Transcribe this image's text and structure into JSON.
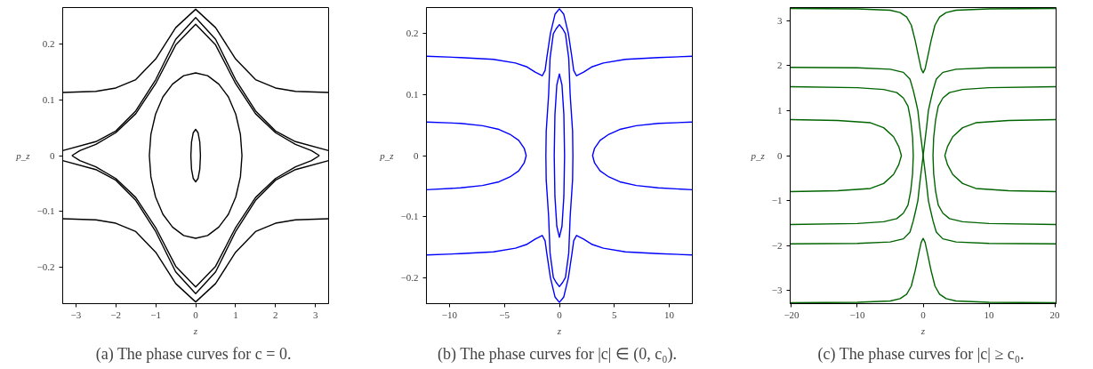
{
  "chart_data": [
    {
      "type": "line",
      "xlabel": "z",
      "ylabel": "p_z",
      "grid": false,
      "xlim": [
        -3.33,
        3.33
      ],
      "ylim": [
        -0.265,
        0.265
      ],
      "xticks": [
        {
          "value": -3,
          "label": "−3"
        },
        {
          "value": -2,
          "label": "−2"
        },
        {
          "value": -1,
          "label": "−1"
        },
        0,
        1,
        2,
        3
      ],
      "yticks": [
        {
          "value": -0.2,
          "label": "−0.2"
        },
        {
          "value": -0.1,
          "label": "−0.1"
        },
        0,
        0.1,
        0.2
      ],
      "annotations": [
        "(a)  The phase curves for c = 0."
      ],
      "series": [
        {
          "color": "#000000",
          "x": [
            -3.33,
            -2.5,
            -2,
            -1.5,
            -1,
            -0.5,
            0,
            0.5,
            1,
            1.5,
            2,
            2.5,
            3.33
          ],
          "values": [
            0.113,
            0.115,
            0.121,
            0.136,
            0.173,
            0.229,
            0.262,
            0.229,
            0.173,
            0.136,
            0.121,
            0.115,
            0.113
          ]
        },
        {
          "color": "#000000",
          "x": [
            -3.33,
            -2.5,
            -2,
            -1.5,
            -1,
            -0.5,
            0,
            0.5,
            1,
            1.5,
            2,
            2.5,
            3.33
          ],
          "values": [
            -0.113,
            -0.115,
            -0.121,
            -0.136,
            -0.173,
            -0.229,
            -0.262,
            -0.229,
            -0.173,
            -0.136,
            -0.121,
            -0.115,
            -0.113
          ]
        },
        {
          "color": "#000000",
          "x": [
            -3.33,
            -2.5,
            -2,
            -1.5,
            -1,
            -0.5,
            0,
            0.5,
            1,
            1.5,
            2,
            2.5,
            3.33
          ],
          "values": [
            0.009,
            0.025,
            0.044,
            0.08,
            0.136,
            0.208,
            0.247,
            0.208,
            0.136,
            0.08,
            0.044,
            0.025,
            0.009
          ]
        },
        {
          "color": "#000000",
          "x": [
            -3.33,
            -2.5,
            -2,
            -1.5,
            -1,
            -0.5,
            0,
            0.5,
            1,
            1.5,
            2,
            2.5,
            3.33
          ],
          "values": [
            -0.009,
            -0.025,
            -0.044,
            -0.08,
            -0.136,
            -0.208,
            -0.247,
            -0.208,
            -0.136,
            -0.08,
            -0.044,
            -0.025,
            -0.009
          ]
        },
        {
          "color": "#000000",
          "x": [
            -3.1,
            -2.9,
            -2.5,
            -2,
            -1.5,
            -1,
            -0.5,
            0,
            0.5,
            1,
            1.5,
            2,
            2.5,
            2.9,
            3.1,
            null,
            -3.1,
            -2.9,
            -2.5,
            -2,
            -1.5,
            -1,
            -0.5,
            0,
            0.5,
            1,
            1.5,
            2,
            2.5,
            2.9,
            3.1
          ],
          "values": [
            0,
            0.009,
            0.02,
            0.041,
            0.075,
            0.129,
            0.198,
            0.235,
            0.198,
            0.129,
            0.075,
            0.041,
            0.02,
            0.009,
            0,
            null,
            0,
            -0.009,
            -0.02,
            -0.041,
            -0.075,
            -0.129,
            -0.198,
            -0.235,
            -0.198,
            -0.129,
            -0.075,
            -0.041,
            -0.02,
            -0.009,
            0
          ]
        },
        {
          "color": "#000000",
          "x": [
            -1.16,
            -1.121,
            -1.005,
            -0.82,
            -0.58,
            -0.3,
            0,
            0.3,
            0.58,
            0.82,
            1.005,
            1.121,
            1.16,
            null,
            -1.16,
            -1.121,
            -1.005,
            -0.82,
            -0.58,
            -0.3,
            0,
            0.3,
            0.58,
            0.82,
            1.005,
            1.121,
            1.16
          ],
          "values": [
            0,
            0.038,
            0.074,
            0.105,
            0.128,
            0.143,
            0.148,
            0.143,
            0.128,
            0.105,
            0.074,
            0.038,
            0,
            null,
            0,
            -0.038,
            -0.074,
            -0.105,
            -0.128,
            -0.143,
            -0.148,
            -0.143,
            -0.128,
            -0.105,
            -0.074,
            -0.038,
            0
          ]
        },
        {
          "color": "#000000",
          "x": [
            -0.12,
            -0.104,
            -0.06,
            0,
            0.06,
            0.104,
            0.12,
            null,
            -0.12,
            -0.104,
            -0.06,
            0,
            0.06,
            0.104,
            0.12
          ],
          "values": [
            0,
            0.024,
            0.041,
            0.047,
            0.041,
            0.024,
            0,
            null,
            0,
            -0.024,
            -0.041,
            -0.047,
            -0.041,
            -0.024,
            0
          ]
        }
      ]
    },
    {
      "type": "line",
      "xlabel": "z",
      "ylabel": "p_z",
      "grid": false,
      "xlim": [
        -12.1,
        12.1
      ],
      "ylim": [
        -0.243,
        0.243
      ],
      "xticks": [
        {
          "value": -10,
          "label": "−10"
        },
        {
          "value": -5,
          "label": "−5"
        },
        0,
        5,
        10
      ],
      "yticks": [
        {
          "value": -0.2,
          "label": "−0.2"
        },
        {
          "value": -0.1,
          "label": "−0.1"
        },
        0,
        0.1,
        0.2
      ],
      "annotations": [
        "(b)  The phase curves for |c| ∈ (0, c₀)."
      ],
      "series": [
        {
          "color": "#0000ff",
          "x": [
            -12.1,
            -9,
            -6,
            -4,
            -3,
            -2.2,
            -1.56,
            -1.3,
            -1.15,
            -0.82,
            -0.4,
            0,
            0.4,
            0.82,
            1.15,
            1.3,
            1.56,
            2.2,
            3,
            4,
            6,
            9,
            12.1
          ],
          "values": [
            0.163,
            0.161,
            0.158,
            0.152,
            0.146,
            0.137,
            0.131,
            0.14,
            0.16,
            0.2,
            0.232,
            0.241,
            0.232,
            0.2,
            0.16,
            0.14,
            0.131,
            0.137,
            0.146,
            0.152,
            0.158,
            0.161,
            0.163
          ]
        },
        {
          "color": "#0000ff",
          "x": [
            -12.1,
            -9,
            -6,
            -4,
            -3,
            -2.2,
            -1.56,
            -1.3,
            -1.15,
            -0.82,
            -0.4,
            0,
            0.4,
            0.82,
            1.15,
            1.3,
            1.56,
            2.2,
            3,
            4,
            6,
            9,
            12.1
          ],
          "values": [
            -0.163,
            -0.161,
            -0.158,
            -0.152,
            -0.146,
            -0.137,
            -0.131,
            -0.14,
            -0.16,
            -0.2,
            -0.232,
            -0.241,
            -0.232,
            -0.2,
            -0.16,
            -0.14,
            -0.131,
            -0.137,
            -0.146,
            -0.152,
            -0.158,
            -0.161,
            -0.163
          ]
        },
        {
          "color": "#0000ff",
          "x": [
            -1.23,
            -1.2,
            -0.98,
            -0.85,
            -0.55,
            -0.3,
            0,
            0.3,
            0.55,
            0.85,
            0.98,
            1.2,
            1.23,
            null,
            -1.23,
            -1.2,
            -0.98,
            -0.85,
            -0.55,
            -0.3,
            0,
            0.3,
            0.55,
            0.85,
            0.98,
            1.2,
            1.23
          ],
          "values": [
            0,
            0.04,
            0.1,
            0.16,
            0.2,
            0.208,
            0.215,
            0.208,
            0.2,
            0.16,
            0.1,
            0.04,
            0,
            null,
            0,
            -0.04,
            -0.1,
            -0.16,
            -0.2,
            -0.208,
            -0.215,
            -0.208,
            -0.2,
            -0.16,
            -0.1,
            -0.04,
            0
          ]
        },
        {
          "color": "#0000ff",
          "x": [
            -0.47,
            -0.407,
            -0.235,
            0,
            0.235,
            0.407,
            0.47,
            null,
            -0.47,
            -0.407,
            -0.235,
            0,
            0.235,
            0.407,
            0.47
          ],
          "values": [
            0,
            0.067,
            0.116,
            0.134,
            0.116,
            0.067,
            0,
            null,
            0,
            -0.067,
            -0.116,
            -0.134,
            -0.116,
            -0.067,
            0
          ]
        },
        {
          "color": "#0000ff",
          "x": [
            -12.1,
            -9,
            -7,
            -5.5,
            -4.5,
            -3.7,
            -3.2,
            -3.02,
            -3.2,
            -3.7,
            -4.5,
            -5.5,
            -7,
            -9,
            -12.1
          ],
          "values": [
            0.055,
            0.053,
            0.049,
            0.043,
            0.035,
            0.025,
            0.012,
            0,
            -0.012,
            -0.025,
            -0.035,
            -0.043,
            -0.049,
            -0.053,
            -0.056
          ]
        },
        {
          "color": "#0000ff",
          "x": [
            12.1,
            9,
            7,
            5.5,
            4.5,
            3.7,
            3.2,
            3.02,
            3.2,
            3.7,
            4.5,
            5.5,
            7,
            9,
            12.1
          ],
          "values": [
            0.055,
            0.053,
            0.049,
            0.043,
            0.035,
            0.025,
            0.012,
            0,
            -0.012,
            -0.025,
            -0.035,
            -0.043,
            -0.049,
            -0.053,
            -0.056
          ]
        }
      ]
    },
    {
      "type": "line",
      "xlabel": "z",
      "ylabel": "p_z",
      "grid": false,
      "xlim": [
        -20.2,
        20.2
      ],
      "ylim": [
        -3.29,
        3.29
      ],
      "xticks": [
        {
          "value": -20,
          "label": "−20"
        },
        {
          "value": -10,
          "label": "−10"
        },
        0,
        10,
        20
      ],
      "yticks": [
        {
          "value": -3,
          "label": "−3"
        },
        {
          "value": -2,
          "label": "−2"
        },
        {
          "value": -1,
          "label": "−1"
        },
        0,
        1,
        2,
        3
      ],
      "annotations": [
        "(c)  The phase curves for |c| ≥ c₀."
      ],
      "series": [
        {
          "color": "#006400",
          "x": [
            -20.2,
            -10,
            -5,
            -3.5,
            -2.5,
            -1.8,
            -1.2,
            -0.7,
            -0.3,
            0,
            0.3,
            0.7,
            1.2,
            1.8,
            2.5,
            3.5,
            5,
            10,
            20.2
          ],
          "values": [
            3.27,
            3.26,
            3.23,
            3.18,
            3.08,
            2.9,
            2.55,
            2.2,
            1.93,
            1.84,
            1.93,
            2.2,
            2.55,
            2.9,
            3.08,
            3.18,
            3.23,
            3.26,
            3.27
          ]
        },
        {
          "color": "#006400",
          "x": [
            -20.2,
            -10,
            -5,
            -3.5,
            -2.5,
            -1.8,
            -1.2,
            -0.7,
            -0.3,
            0,
            0.3,
            0.7,
            1.2,
            1.8,
            2.5,
            3.5,
            5,
            10,
            20.2
          ],
          "values": [
            -3.27,
            -3.26,
            -3.23,
            -3.18,
            -3.08,
            -2.9,
            -2.55,
            -2.2,
            -1.93,
            -1.84,
            -1.93,
            -2.2,
            -2.55,
            -2.9,
            -3.08,
            -3.18,
            -3.23,
            -3.26,
            -3.27
          ]
        },
        {
          "color": "#006400",
          "x": [
            -20.2,
            -10,
            -5,
            -3,
            -2,
            -1.5,
            -1.1,
            -0.8,
            -0.5,
            -0.25,
            0,
            0.25,
            0.5,
            0.8,
            1.1,
            1.5,
            2,
            3,
            5,
            10,
            20.2
          ],
          "values": [
            1.96,
            1.95,
            1.92,
            1.85,
            1.7,
            1.45,
            1.2,
            1.0,
            0.6,
            0.3,
            0,
            -0.3,
            -0.6,
            -1.0,
            -1.2,
            -1.45,
            -1.7,
            -1.85,
            -1.92,
            -1.95,
            -1.96
          ]
        },
        {
          "color": "#006400",
          "x": [
            20.2,
            10,
            5,
            3,
            2,
            1.5,
            1.1,
            0.8,
            0.5,
            0.25,
            0,
            -0.25,
            -0.5,
            -0.8,
            -1.1,
            -1.5,
            -2,
            -3,
            -5,
            -10,
            -20.2
          ],
          "values": [
            1.96,
            1.95,
            1.92,
            1.85,
            1.7,
            1.45,
            1.2,
            1.0,
            0.6,
            0.3,
            0,
            -0.3,
            -0.6,
            -1.0,
            -1.2,
            -1.45,
            -1.7,
            -1.85,
            -1.92,
            -1.95,
            -1.96
          ]
        },
        {
          "color": "#006400",
          "x": [
            -20.2,
            -10,
            -6,
            -4,
            -3,
            -2.3,
            -1.9,
            -1.6,
            -1.5,
            -1.6,
            -1.9,
            -2.3,
            -3,
            -4,
            -6,
            -10,
            -20.2
          ],
          "values": [
            1.53,
            1.51,
            1.47,
            1.4,
            1.28,
            1.1,
            0.8,
            0.4,
            0,
            -0.4,
            -0.8,
            -1.1,
            -1.28,
            -1.4,
            -1.47,
            -1.51,
            -1.53
          ]
        },
        {
          "color": "#006400",
          "x": [
            20.2,
            10,
            6,
            4,
            3,
            2.3,
            1.9,
            1.6,
            1.5,
            1.6,
            1.9,
            2.3,
            3,
            4,
            6,
            10,
            20.2
          ],
          "values": [
            1.53,
            1.51,
            1.47,
            1.4,
            1.28,
            1.1,
            0.8,
            0.4,
            0,
            -0.4,
            -0.8,
            -1.1,
            -1.28,
            -1.4,
            -1.47,
            -1.51,
            -1.53
          ]
        },
        {
          "color": "#006400",
          "x": [
            -20.2,
            -13,
            -8,
            -6,
            -4.5,
            -3.7,
            -3.3,
            -3.7,
            -4.5,
            -6,
            -8,
            -13,
            -20.2
          ],
          "values": [
            0.8,
            0.78,
            0.73,
            0.62,
            0.42,
            0.2,
            0,
            -0.2,
            -0.42,
            -0.62,
            -0.73,
            -0.78,
            -0.8
          ]
        },
        {
          "color": "#006400",
          "x": [
            20.2,
            13,
            8,
            6,
            4.5,
            3.7,
            3.3,
            3.7,
            4.5,
            6,
            8,
            13,
            20.2
          ],
          "values": [
            0.8,
            0.78,
            0.73,
            0.62,
            0.42,
            0.2,
            0,
            -0.2,
            -0.42,
            -0.62,
            -0.73,
            -0.78,
            -0.8
          ]
        }
      ]
    }
  ]
}
